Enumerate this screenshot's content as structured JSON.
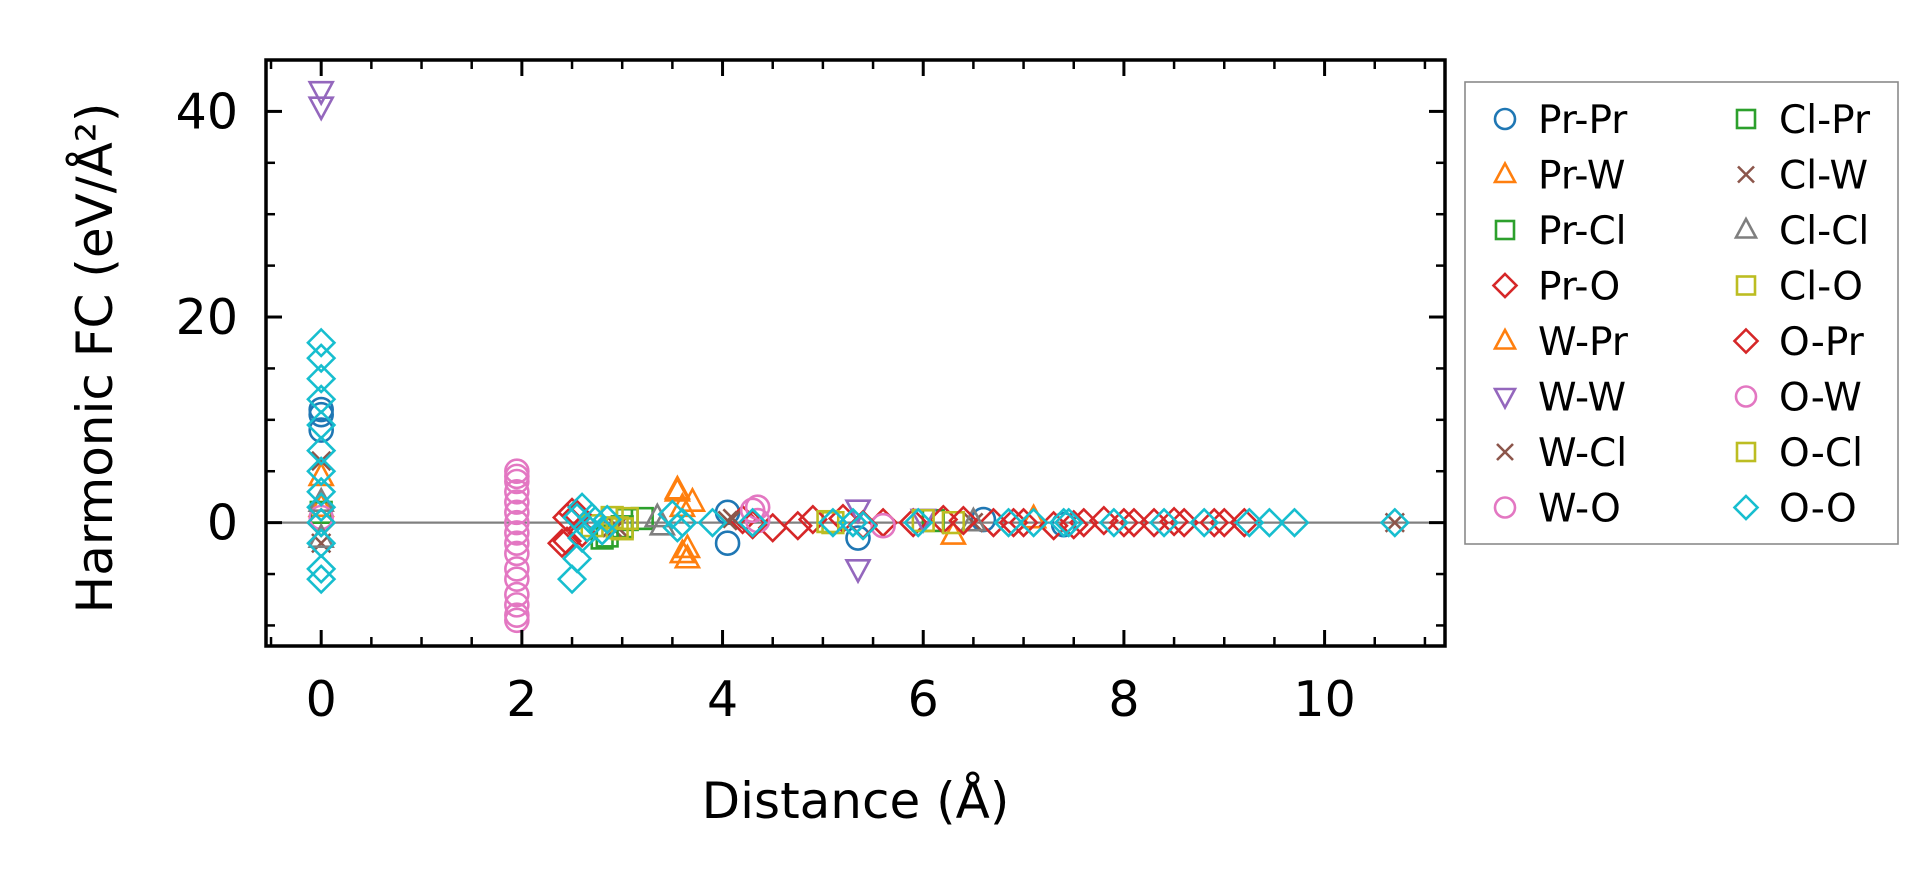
{
  "chart_data": {
    "type": "scatter",
    "title": "",
    "xlabel": "Distance (Å)",
    "ylabel": "Harmonic FC (eV/Å²)",
    "xlim": [
      -0.55,
      11.2
    ],
    "ylim": [
      -12,
      45
    ],
    "xticks": [
      0,
      2,
      4,
      6,
      8,
      10
    ],
    "yticks": [
      0,
      20,
      40
    ],
    "xtick_labels": [
      "0",
      "2",
      "4",
      "6",
      "8",
      "10"
    ],
    "ytick_labels": [
      "0",
      "20",
      "40"
    ],
    "grid": false,
    "zero_line": true,
    "legend_position": "outside-right",
    "series": [
      {
        "name": "Pr-Pr",
        "marker": "circle",
        "color": "#1f77b4",
        "points": [
          [
            0,
            9
          ],
          [
            0,
            10.5
          ],
          [
            0,
            11
          ],
          [
            4.05,
            -2
          ],
          [
            4.05,
            1
          ],
          [
            5.35,
            -1.5
          ],
          [
            6.6,
            0.3
          ],
          [
            7.4,
            -0.2
          ]
        ]
      },
      {
        "name": "Pr-W",
        "marker": "triangle-up",
        "color": "#ff7f0e",
        "points": [
          [
            0,
            4.5
          ],
          [
            0,
            1.5
          ],
          [
            3.55,
            3
          ],
          [
            3.6,
            -3
          ],
          [
            3.65,
            -3.5
          ],
          [
            3.7,
            2
          ],
          [
            6.3,
            -1.2
          ],
          [
            7.1,
            0.4
          ]
        ]
      },
      {
        "name": "Pr-Cl",
        "marker": "square",
        "color": "#2ca02c",
        "points": [
          [
            0,
            1
          ],
          [
            2.8,
            -1.5
          ],
          [
            3.0,
            -0.4
          ],
          [
            3.2,
            0.4
          ],
          [
            6.1,
            0.2
          ]
        ]
      },
      {
        "name": "Pr-O",
        "marker": "diamond",
        "color": "#d62728",
        "points": [
          [
            0,
            0
          ],
          [
            2.4,
            -2
          ],
          [
            2.45,
            0.5
          ],
          [
            2.5,
            1
          ],
          [
            2.6,
            -1
          ],
          [
            4.2,
            0.3
          ],
          [
            4.5,
            -0.5
          ],
          [
            4.75,
            -0.3
          ],
          [
            5.2,
            0.4
          ],
          [
            5.6,
            0
          ],
          [
            5.9,
            0
          ],
          [
            6.2,
            0.3
          ],
          [
            6.7,
            0
          ],
          [
            7.0,
            0
          ],
          [
            7.3,
            -0.3
          ],
          [
            7.6,
            0
          ],
          [
            7.8,
            0.2
          ],
          [
            8.0,
            0
          ],
          [
            8.3,
            0
          ],
          [
            8.6,
            0
          ],
          [
            8.9,
            0
          ],
          [
            9.2,
            0
          ]
        ]
      },
      {
        "name": "W-Pr",
        "marker": "triangle-up",
        "color": "#ff7f0e",
        "points": [
          [
            3.55,
            3.2
          ],
          [
            3.6,
            1.5
          ],
          [
            3.65,
            -2.5
          ]
        ]
      },
      {
        "name": "W-W",
        "marker": "triangle-down",
        "color": "#9467bd",
        "points": [
          [
            0,
            42
          ],
          [
            0,
            40.5
          ],
          [
            5.35,
            1.3
          ],
          [
            5.35,
            -4.5
          ],
          [
            6.0,
            0.4
          ]
        ]
      },
      {
        "name": "W-Cl",
        "marker": "x",
        "color": "#8c564b",
        "points": [
          [
            0,
            6
          ],
          [
            0,
            -2
          ],
          [
            2.9,
            -0.5
          ],
          [
            4.1,
            0.4
          ],
          [
            6.5,
            0
          ],
          [
            10.7,
            0
          ]
        ]
      },
      {
        "name": "W-O",
        "marker": "circle",
        "color": "#e377c2",
        "points": [
          [
            0,
            0.5
          ],
          [
            1.95,
            -9.5
          ],
          [
            1.95,
            -8
          ],
          [
            1.95,
            -7
          ],
          [
            1.95,
            -5.5
          ],
          [
            1.95,
            -4.5
          ],
          [
            1.95,
            -3
          ],
          [
            1.95,
            -2
          ],
          [
            1.95,
            -1
          ],
          [
            1.95,
            0
          ],
          [
            1.95,
            1
          ],
          [
            1.95,
            2
          ],
          [
            1.95,
            3
          ],
          [
            1.95,
            4
          ],
          [
            1.95,
            5
          ],
          [
            4.35,
            1.5
          ],
          [
            4.35,
            0.2
          ],
          [
            5.6,
            -0.3
          ]
        ]
      },
      {
        "name": "Cl-Pr",
        "marker": "square",
        "color": "#2ca02c",
        "points": [
          [
            2.85,
            -1.3
          ],
          [
            3.05,
            0.3
          ]
        ]
      },
      {
        "name": "Cl-W",
        "marker": "x",
        "color": "#8c564b",
        "points": [
          [
            2.95,
            -0.4
          ],
          [
            4.05,
            0.2
          ]
        ]
      },
      {
        "name": "Cl-Cl",
        "marker": "triangle-up",
        "color": "#7f7f7f",
        "points": [
          [
            0,
            2
          ],
          [
            0,
            -1.5
          ],
          [
            3.35,
            0.5
          ],
          [
            3.4,
            -0.3
          ],
          [
            6.5,
            0.1
          ]
        ]
      },
      {
        "name": "Cl-O",
        "marker": "square",
        "color": "#bcbd22",
        "points": [
          [
            2.7,
            -0.3
          ],
          [
            2.9,
            0.5
          ],
          [
            3.0,
            -0.6
          ],
          [
            5.1,
            0
          ],
          [
            6.0,
            0.2
          ],
          [
            6.3,
            0
          ]
        ]
      },
      {
        "name": "O-Pr",
        "marker": "diamond",
        "color": "#d62728",
        "points": [
          [
            2.45,
            -1.8
          ],
          [
            2.55,
            0.8
          ],
          [
            4.3,
            -0.2
          ],
          [
            4.9,
            0.3
          ],
          [
            5.4,
            -0.2
          ],
          [
            6.4,
            0.2
          ],
          [
            6.9,
            0
          ],
          [
            7.5,
            -0.2
          ],
          [
            8.1,
            0
          ],
          [
            8.5,
            0.1
          ],
          [
            9.0,
            0
          ]
        ]
      },
      {
        "name": "O-W",
        "marker": "circle",
        "color": "#e377c2",
        "points": [
          [
            1.95,
            -9
          ],
          [
            1.95,
            4.5
          ],
          [
            4.3,
            1.2
          ]
        ]
      },
      {
        "name": "O-Cl",
        "marker": "square",
        "color": "#bcbd22",
        "points": [
          [
            2.95,
            -0.5
          ],
          [
            3.05,
            0.4
          ],
          [
            5.05,
            0.1
          ]
        ]
      },
      {
        "name": "O-O",
        "marker": "diamond",
        "color": "#17becf",
        "points": [
          [
            0,
            17.5
          ],
          [
            0,
            16
          ],
          [
            0,
            14
          ],
          [
            0,
            12
          ],
          [
            0,
            9.5
          ],
          [
            0,
            7
          ],
          [
            0,
            5
          ],
          [
            0,
            3
          ],
          [
            0,
            1.5
          ],
          [
            0,
            0
          ],
          [
            0,
            -2
          ],
          [
            0,
            -4.5
          ],
          [
            0,
            -5.5
          ],
          [
            2.5,
            -5.5
          ],
          [
            2.55,
            -3.5
          ],
          [
            2.55,
            0.5
          ],
          [
            2.6,
            -1.5
          ],
          [
            2.6,
            1.5
          ],
          [
            2.65,
            -0.5
          ],
          [
            2.7,
            0.5
          ],
          [
            2.8,
            -0.8
          ],
          [
            2.85,
            0.3
          ],
          [
            3.5,
            0.8
          ],
          [
            3.55,
            -0.5
          ],
          [
            3.6,
            0
          ],
          [
            3.9,
            0
          ],
          [
            4.3,
            0
          ],
          [
            5.1,
            0
          ],
          [
            5.3,
            0
          ],
          [
            5.4,
            -0.3
          ],
          [
            5.95,
            0
          ],
          [
            6.85,
            0
          ],
          [
            7.1,
            0
          ],
          [
            7.4,
            0
          ],
          [
            7.45,
            0
          ],
          [
            7.9,
            0
          ],
          [
            8.4,
            0
          ],
          [
            8.8,
            0
          ],
          [
            9.25,
            0
          ],
          [
            9.45,
            0
          ],
          [
            9.7,
            0
          ],
          [
            10.7,
            0
          ]
        ]
      }
    ]
  }
}
